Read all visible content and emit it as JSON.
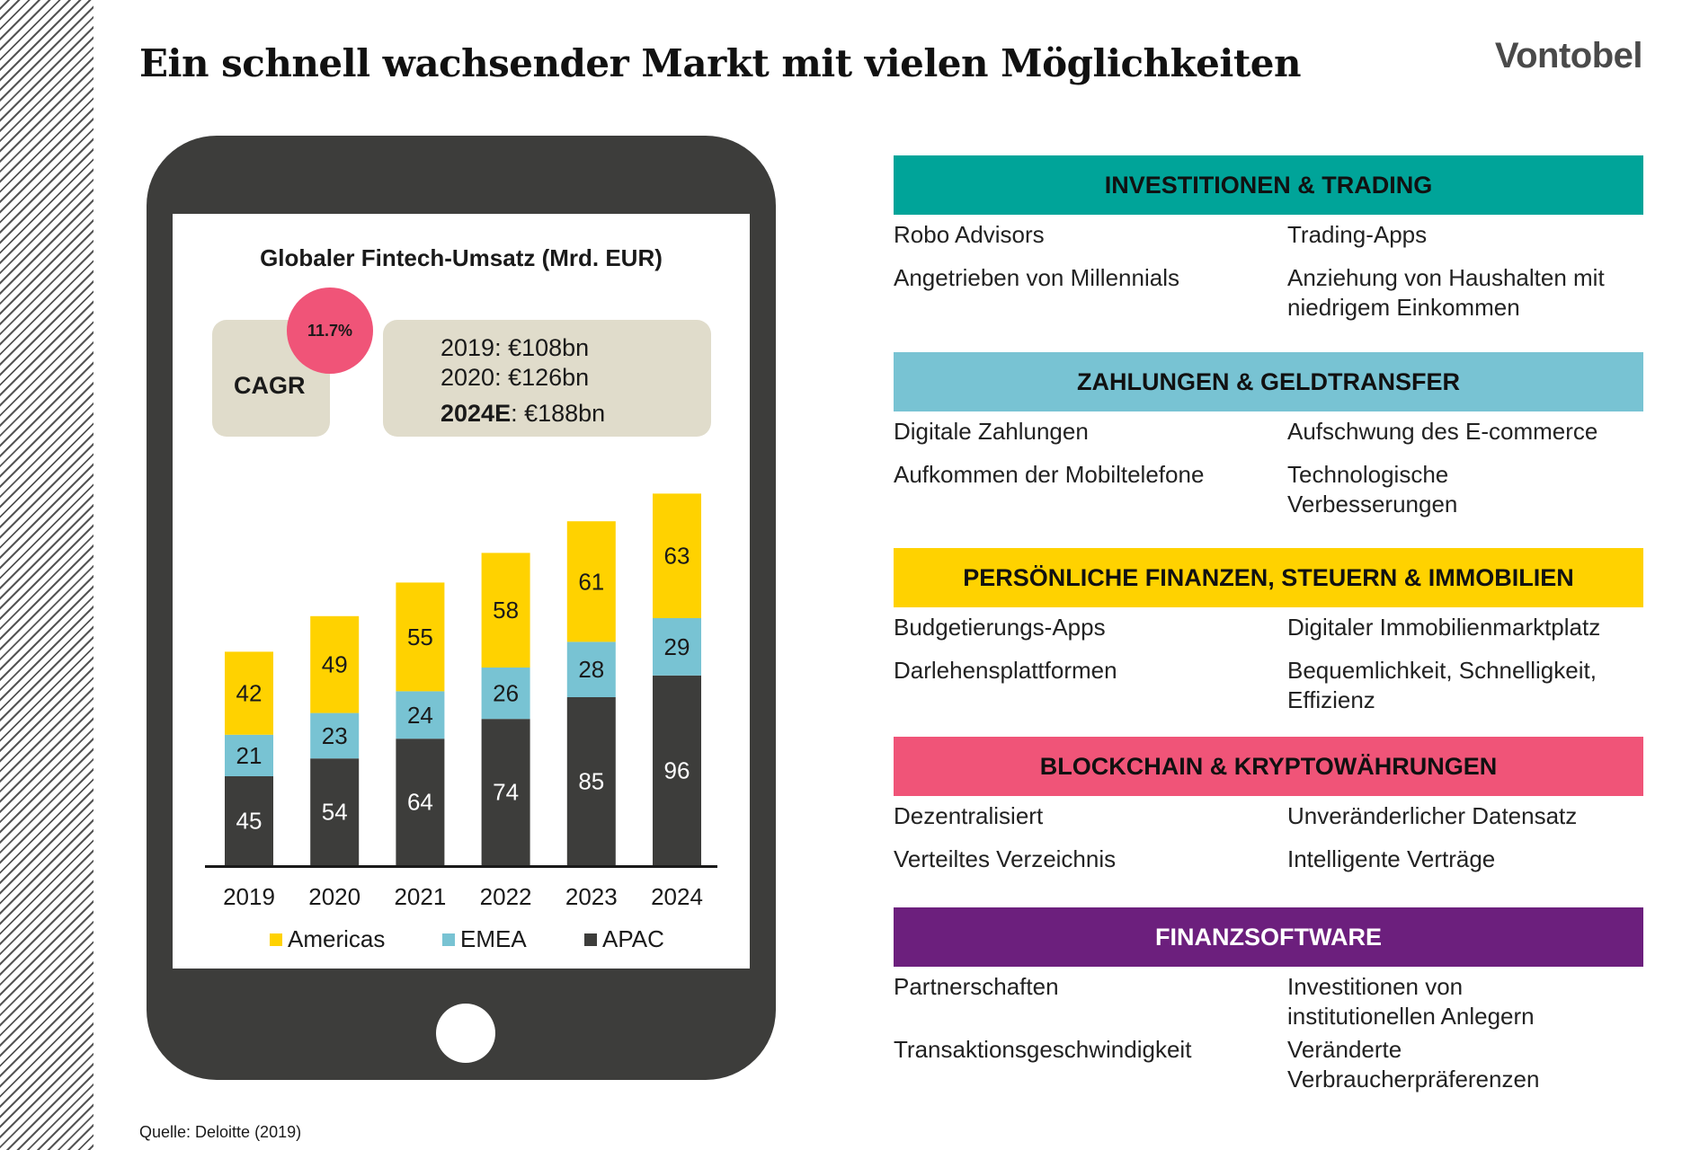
{
  "title": "Ein schnell wachsender Markt mit vielen Möglichkeiten",
  "logo": "Vontobel",
  "chart_data": {
    "type": "bar",
    "stacked": true,
    "title": "Globaler Fintech-Umsatz (Mrd. EUR)",
    "categories": [
      "2019",
      "2020",
      "2021",
      "2022",
      "2023",
      "2024"
    ],
    "series": [
      {
        "name": "APAC",
        "color": "#3d3d3b",
        "label_color": "#ffffff",
        "values": [
          45,
          54,
          64,
          74,
          85,
          96
        ]
      },
      {
        "name": "EMEA",
        "color": "#78c3d3",
        "label_color": "#1a1a1a",
        "values": [
          21,
          23,
          24,
          26,
          28,
          29
        ]
      },
      {
        "name": "Americas",
        "color": "#ffd200",
        "label_color": "#1a1a1a",
        "values": [
          42,
          49,
          55,
          58,
          61,
          63
        ]
      }
    ],
    "ylim": [
      0,
      195
    ],
    "grid": false,
    "legend": "bottom"
  },
  "cagr": {
    "label": "CAGR",
    "value": "11.7%"
  },
  "revenue_notes": [
    {
      "year": "2019",
      "sep": ": ",
      "value": "€108bn",
      "bold": false
    },
    {
      "year": "2020",
      "sep": ": ",
      "value": "€126bn",
      "bold": false
    },
    {
      "year": "2024E",
      "sep": ": ",
      "value": "€188bn",
      "bold": true
    }
  ],
  "sections": [
    {
      "heading": "INVESTITIONEN & TRADING",
      "color": "#00a499",
      "left": [
        "Robo Advisors",
        "Angetrieben von Millennials"
      ],
      "right": [
        "Trading-Apps",
        "Anziehung von Haushalten mit\nniedrigem Einkommen"
      ]
    },
    {
      "heading": "ZAHLUNGEN & GELDTRANSFER",
      "color": "#78c3d3",
      "left": [
        "Digitale Zahlungen",
        "Aufkommen der Mobiltelefone"
      ],
      "right": [
        "Aufschwung des E-commerce",
        "Technologische\nVerbesserungen"
      ]
    },
    {
      "heading": "PERSÖNLICHE FINANZEN, STEUERN & IMMOBILIEN",
      "color": "#ffd200",
      "left": [
        "Budgetierungs-Apps",
        "Darlehensplattformen"
      ],
      "right": [
        "Digitaler Immobilienmarktplatz",
        "Bequemlichkeit, Schnelligkeit,\nEffizienz"
      ]
    },
    {
      "heading": "BLOCKCHAIN & KRYPTOWÄHRUNGEN",
      "color": "#f05478",
      "left": [
        "Dezentralisiert",
        "Verteiltes Verzeichnis"
      ],
      "right": [
        "Unveränderlicher Datensatz",
        "Intelligente Verträge"
      ]
    },
    {
      "heading": "FINANZSOFTWARE",
      "color": "#6c1f7d",
      "heading_color": "#ffffff",
      "left": [
        "Partnerschaften",
        "Transaktionsgeschwindigkeit"
      ],
      "right": [
        "Investitionen von\ninstitutionellen Anlegern",
        "Veränderte\nVerbraucherpräferenzen"
      ]
    }
  ],
  "source": "Quelle: Deloitte (2019)"
}
